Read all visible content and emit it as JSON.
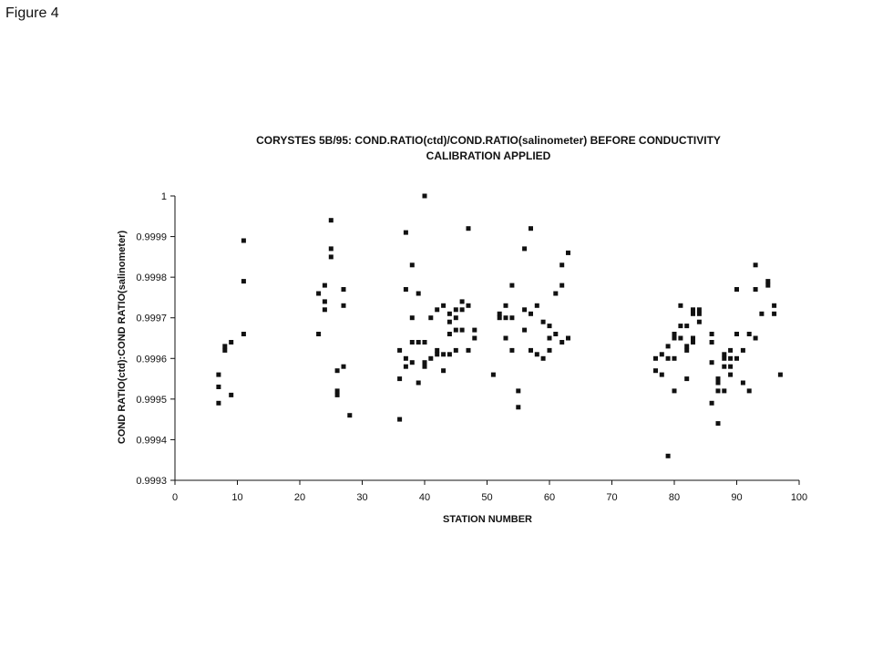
{
  "figure_label": "Figure 4",
  "chart_data": {
    "type": "scatter",
    "title": "CORYSTES 5B/95: COND.RATIO(ctd)/COND.RATIO(salinometer) BEFORE CONDUCTIVITY",
    "subtitle": "CALIBRATION APPLIED",
    "xlabel": "STATION NUMBER",
    "ylabel": "COND RATIO(ctd):COND RATIO(salinometer)",
    "xlim": [
      0,
      100
    ],
    "ylim": [
      0.9993,
      1
    ],
    "x_ticks": [
      0,
      10,
      20,
      30,
      40,
      50,
      60,
      70,
      80,
      90,
      100
    ],
    "y_ticks": [
      0.9993,
      0.9994,
      0.9995,
      0.9996,
      0.9997,
      0.9998,
      0.9999,
      1
    ],
    "grid": false,
    "legend": "none",
    "marker_color": "#111111",
    "series": [
      {
        "points": [
          [
            7,
            0.99949
          ],
          [
            7,
            0.99953
          ],
          [
            7,
            0.99956
          ],
          [
            8,
            0.99962
          ],
          [
            8,
            0.99963
          ],
          [
            9,
            0.99951
          ],
          [
            9,
            0.99964
          ],
          [
            11,
            0.99966
          ],
          [
            11,
            0.99979
          ],
          [
            11,
            0.99989
          ],
          [
            23,
            0.99966
          ],
          [
            23,
            0.99976
          ],
          [
            24,
            0.99972
          ],
          [
            24,
            0.99974
          ],
          [
            24,
            0.99978
          ],
          [
            25,
            0.99985
          ],
          [
            25,
            0.99987
          ],
          [
            25,
            0.99994
          ],
          [
            26,
            0.99951
          ],
          [
            26,
            0.99952
          ],
          [
            26,
            0.99957
          ],
          [
            27,
            0.99958
          ],
          [
            27,
            0.99973
          ],
          [
            27,
            0.99977
          ],
          [
            28,
            0.99946
          ],
          [
            36,
            0.99945
          ],
          [
            36,
            0.99955
          ],
          [
            36,
            0.99962
          ],
          [
            37,
            0.99958
          ],
          [
            37,
            0.9996
          ],
          [
            37,
            0.99977
          ],
          [
            37,
            0.99991
          ],
          [
            38,
            0.99959
          ],
          [
            38,
            0.99964
          ],
          [
            38,
            0.9997
          ],
          [
            38,
            0.99983
          ],
          [
            39,
            0.99954
          ],
          [
            39,
            0.99964
          ],
          [
            39,
            0.99976
          ],
          [
            40,
            0.99958
          ],
          [
            40,
            0.99959
          ],
          [
            40,
            0.99964
          ],
          [
            40,
            1.0
          ],
          [
            41,
            0.9996
          ],
          [
            41,
            0.9997
          ],
          [
            42,
            0.99961
          ],
          [
            42,
            0.99962
          ],
          [
            42,
            0.99972
          ],
          [
            43,
            0.99957
          ],
          [
            43,
            0.99961
          ],
          [
            43,
            0.99973
          ],
          [
            44,
            0.99961
          ],
          [
            44,
            0.99966
          ],
          [
            44,
            0.99969
          ],
          [
            44,
            0.99971
          ],
          [
            45,
            0.99962
          ],
          [
            45,
            0.99967
          ],
          [
            45,
            0.9997
          ],
          [
            45,
            0.99972
          ],
          [
            46,
            0.99967
          ],
          [
            46,
            0.99972
          ],
          [
            46,
            0.99974
          ],
          [
            47,
            0.99962
          ],
          [
            47,
            0.99973
          ],
          [
            47,
            0.99992
          ],
          [
            48,
            0.99965
          ],
          [
            48,
            0.99967
          ],
          [
            51,
            0.99956
          ],
          [
            52,
            0.9997
          ],
          [
            52,
            0.99971
          ],
          [
            53,
            0.99965
          ],
          [
            53,
            0.9997
          ],
          [
            53,
            0.99973
          ],
          [
            54,
            0.99962
          ],
          [
            54,
            0.9997
          ],
          [
            54,
            0.99978
          ],
          [
            55,
            0.99948
          ],
          [
            55,
            0.99952
          ],
          [
            56,
            0.99967
          ],
          [
            56,
            0.99972
          ],
          [
            56,
            0.99987
          ],
          [
            57,
            0.99962
          ],
          [
            57,
            0.99971
          ],
          [
            57,
            0.99992
          ],
          [
            58,
            0.99961
          ],
          [
            58,
            0.99973
          ],
          [
            59,
            0.9996
          ],
          [
            59,
            0.99969
          ],
          [
            60,
            0.99962
          ],
          [
            60,
            0.99965
          ],
          [
            60,
            0.99968
          ],
          [
            61,
            0.99966
          ],
          [
            61,
            0.99976
          ],
          [
            62,
            0.99964
          ],
          [
            62,
            0.99978
          ],
          [
            62,
            0.99983
          ],
          [
            63,
            0.99965
          ],
          [
            63,
            0.99986
          ],
          [
            77,
            0.99957
          ],
          [
            77,
            0.9996
          ],
          [
            78,
            0.99956
          ],
          [
            78,
            0.99961
          ],
          [
            79,
            0.99936
          ],
          [
            79,
            0.9996
          ],
          [
            79,
            0.99963
          ],
          [
            80,
            0.99952
          ],
          [
            80,
            0.9996
          ],
          [
            80,
            0.99965
          ],
          [
            80,
            0.99966
          ],
          [
            81,
            0.99965
          ],
          [
            81,
            0.99968
          ],
          [
            81,
            0.99973
          ],
          [
            82,
            0.99955
          ],
          [
            82,
            0.99962
          ],
          [
            82,
            0.99963
          ],
          [
            82,
            0.99968
          ],
          [
            83,
            0.99964
          ],
          [
            83,
            0.99965
          ],
          [
            83,
            0.99971
          ],
          [
            83,
            0.99972
          ],
          [
            84,
            0.99969
          ],
          [
            84,
            0.99971
          ],
          [
            84,
            0.99972
          ],
          [
            86,
            0.99949
          ],
          [
            86,
            0.99959
          ],
          [
            86,
            0.99964
          ],
          [
            86,
            0.99966
          ],
          [
            87,
            0.99944
          ],
          [
            87,
            0.99952
          ],
          [
            87,
            0.99954
          ],
          [
            87,
            0.99955
          ],
          [
            88,
            0.99952
          ],
          [
            88,
            0.99958
          ],
          [
            88,
            0.9996
          ],
          [
            88,
            0.99961
          ],
          [
            89,
            0.99956
          ],
          [
            89,
            0.99958
          ],
          [
            89,
            0.9996
          ],
          [
            89,
            0.99962
          ],
          [
            90,
            0.9996
          ],
          [
            90,
            0.99966
          ],
          [
            90,
            0.99977
          ],
          [
            91,
            0.99954
          ],
          [
            91,
            0.99962
          ],
          [
            92,
            0.99952
          ],
          [
            92,
            0.99966
          ],
          [
            93,
            0.99965
          ],
          [
            93,
            0.99977
          ],
          [
            93,
            0.99983
          ],
          [
            94,
            0.99971
          ],
          [
            95,
            0.99978
          ],
          [
            95,
            0.99979
          ],
          [
            96,
            0.99971
          ],
          [
            96,
            0.99973
          ],
          [
            97,
            0.99956
          ]
        ]
      }
    ]
  }
}
